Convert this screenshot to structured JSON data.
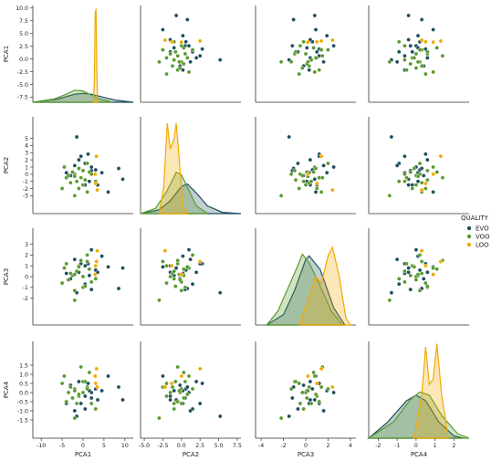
{
  "chart_data": {
    "type": "scatter",
    "variables": [
      "PCA1",
      "PCA2",
      "PCA3",
      "PCA4"
    ],
    "axis_ranges": {
      "PCA1": [
        -12,
        12
      ],
      "PCA2": [
        -5.5,
        8
      ],
      "PCA3": [
        -4.5,
        4.5
      ],
      "PCA4": [
        -2.5,
        2.8
      ]
    },
    "diag_density_max": {
      "PCA1": 0.6,
      "PCA2": 0.75,
      "PCA3": 0.28,
      "PCA4": 0.9
    },
    "y_ticks": {
      "PCA1": [
        "10.0",
        "7.5",
        "5.0",
        "2.5",
        "0.0",
        "-2.5",
        "-5.0",
        "-7.5"
      ],
      "PCA2": [
        "5",
        "4",
        "3",
        "2",
        "1",
        "0",
        "-1",
        "-2",
        "-3"
      ],
      "PCA3": [
        "3",
        "2",
        "1",
        "0",
        "-1",
        "-2"
      ],
      "PCA4": [
        "1.5",
        "1.0",
        "0.5",
        "0.0",
        "-0.5",
        "-1.0",
        "-1.5"
      ]
    },
    "y_tick_values": {
      "PCA1": [
        10,
        7.5,
        5,
        2.5,
        0,
        -2.5,
        -5,
        -7.5
      ],
      "PCA2": [
        5,
        4,
        3,
        2,
        1,
        0,
        -1,
        -2,
        -3
      ],
      "PCA3": [
        3,
        2,
        1,
        0,
        -1,
        -2
      ],
      "PCA4": [
        1.5,
        1,
        0.5,
        0,
        -0.5,
        -1,
        -1.5
      ]
    },
    "x_ticks": {
      "PCA1": [
        "-10",
        "-5",
        "0",
        "5",
        "10"
      ],
      "PCA2": [
        "-5.0",
        "-2.5",
        "0.0",
        "2.5",
        "5.0",
        "7.5"
      ],
      "PCA3": [
        "-4",
        "-2",
        "0",
        "2",
        "4"
      ],
      "PCA4": [
        "-2",
        "-1",
        "0",
        "1",
        "2"
      ]
    },
    "x_tick_values": {
      "PCA1": [
        -10,
        -5,
        0,
        5,
        10
      ],
      "PCA2": [
        -5,
        -2.5,
        0,
        2.5,
        5,
        7.5
      ],
      "PCA3": [
        -4,
        -2,
        0,
        2,
        4
      ],
      "PCA4": [
        -2,
        -1,
        0,
        1,
        2
      ]
    },
    "legend": {
      "title": "QUALITY",
      "placement": "right-center",
      "entries": [
        {
          "name": "EVO",
          "color": "#1f4e5f"
        },
        {
          "name": "VOO",
          "color": "#5a9a2f"
        },
        {
          "name": "LOO",
          "color": "#f2a900"
        }
      ]
    },
    "series": [
      {
        "name": "EVO",
        "color": "#1f4e5f",
        "points": [
          [
            -1.5,
            5.2,
            -1.5,
            -1.3
          ],
          [
            -4.0,
            0.2,
            0.3,
            -0.6
          ],
          [
            1.2,
            2.8,
            1.2,
            0.5
          ],
          [
            3.0,
            0.6,
            0.6,
            0.2
          ],
          [
            0.5,
            -1.5,
            1.0,
            -0.2
          ],
          [
            8.5,
            0.8,
            -1.1,
            0.3
          ],
          [
            9.5,
            -0.7,
            0.8,
            -0.4
          ],
          [
            4.5,
            0.2,
            1.9,
            0.1
          ],
          [
            6.0,
            -2.5,
            0.9,
            0.9
          ],
          [
            2.0,
            0.5,
            -1.2,
            -0.3
          ],
          [
            -1.0,
            2.0,
            0.4,
            0.6
          ],
          [
            0.5,
            1.5,
            -0.7,
            -0.9
          ],
          [
            2.0,
            1.0,
            2.5,
            0.0
          ],
          [
            -2.0,
            1.2,
            1.6,
            -1.0
          ],
          [
            1.5,
            -1.0,
            0.1,
            0.1
          ],
          [
            -0.5,
            2.5,
            1.2,
            -0.6
          ],
          [
            3.5,
            -1.5,
            0.4,
            -0.4
          ],
          [
            -3.0,
            -0.2,
            -0.2,
            0.4
          ]
        ]
      },
      {
        "name": "VOO",
        "color": "#5a9a2f",
        "points": [
          [
            -5.0,
            -2.0,
            -0.6,
            0.5
          ],
          [
            -4.0,
            -0.5,
            1.2,
            -0.5
          ],
          [
            -3.0,
            -1.2,
            0.3,
            0.3
          ],
          [
            -2.0,
            0.0,
            -1.3,
            0.2
          ],
          [
            -1.5,
            -1.0,
            0.5,
            -0.6
          ],
          [
            -1.0,
            -2.0,
            1.0,
            -0.2
          ],
          [
            0.0,
            0.5,
            -1.0,
            0.6
          ],
          [
            0.0,
            -1.5,
            0.0,
            0.0
          ],
          [
            1.0,
            -2.5,
            1.4,
            0.3
          ],
          [
            2.0,
            0.0,
            -0.5,
            -0.6
          ],
          [
            -4.5,
            1.0,
            0.8,
            0.9
          ],
          [
            -2.5,
            0.3,
            0.1,
            -0.3
          ],
          [
            1.5,
            0.3,
            0.7,
            1.1
          ],
          [
            -0.5,
            -0.5,
            1.5,
            1.4
          ],
          [
            3.0,
            -1.0,
            -0.2,
            -0.9
          ],
          [
            -2.0,
            -3.0,
            -2.2,
            -1.4
          ],
          [
            -1.0,
            0.8,
            0.9,
            -0.1
          ],
          [
            0.5,
            -0.8,
            -0.9,
            0.6
          ],
          [
            -3.5,
            -0.2,
            -0.3,
            0.0
          ],
          [
            1.0,
            1.5,
            2.0,
            0.2
          ],
          [
            -2.0,
            -0.3,
            0.2,
            0.1
          ]
        ]
      },
      {
        "name": "LOO",
        "color": "#f2a900",
        "points": [
          [
            3.0,
            -1.3,
            1.0,
            0.5
          ],
          [
            3.2,
            2.5,
            1.4,
            1.3
          ],
          [
            3.4,
            -2.2,
            2.4,
            0.3
          ],
          [
            2.9,
            0.0,
            0.2,
            0.9
          ]
        ]
      }
    ],
    "diagonal_kde": {
      "PCA1": {
        "EVO": [
          [
            -12,
            0.0
          ],
          [
            -6,
            0.02
          ],
          [
            -2,
            0.05
          ],
          [
            0,
            0.055
          ],
          [
            2,
            0.05
          ],
          [
            5,
            0.03
          ],
          [
            8,
            0.012
          ],
          [
            12,
            0.0
          ]
        ],
        "VOO": [
          [
            -12,
            0.0
          ],
          [
            -7,
            0.02
          ],
          [
            -4,
            0.05
          ],
          [
            -2,
            0.075
          ],
          [
            0,
            0.07
          ],
          [
            1.5,
            0.05
          ],
          [
            4,
            0.02
          ],
          [
            7,
            0.0
          ]
        ],
        "LOO": [
          [
            2.4,
            0.0
          ],
          [
            2.7,
            0.12
          ],
          [
            2.9,
            0.55
          ],
          [
            3.1,
            0.58
          ],
          [
            3.3,
            0.2
          ],
          [
            3.5,
            0.0
          ]
        ]
      },
      "PCA2": {
        "EVO": [
          [
            -5.5,
            0.0
          ],
          [
            -3,
            0.03
          ],
          [
            -1.5,
            0.1
          ],
          [
            0,
            0.21
          ],
          [
            0.8,
            0.23
          ],
          [
            2,
            0.16
          ],
          [
            3.5,
            0.06
          ],
          [
            5.5,
            0.01
          ],
          [
            8,
            0.0
          ]
        ],
        "VOO": [
          [
            -5.5,
            0.0
          ],
          [
            -3.5,
            0.04
          ],
          [
            -2,
            0.17
          ],
          [
            -0.7,
            0.32
          ],
          [
            0,
            0.3
          ],
          [
            1,
            0.18
          ],
          [
            2,
            0.06
          ],
          [
            3.5,
            0.0
          ]
        ],
        "LOO": [
          [
            -3,
            0.0
          ],
          [
            -2.4,
            0.2
          ],
          [
            -1.9,
            0.7
          ],
          [
            -1.5,
            0.5
          ],
          [
            -1.0,
            0.58
          ],
          [
            -0.7,
            0.7
          ],
          [
            -0.3,
            0.42
          ],
          [
            0.2,
            0.05
          ],
          [
            0.8,
            0.0
          ]
        ]
      },
      "PCA3": {
        "EVO": [
          [
            -3.5,
            0.0
          ],
          [
            -2,
            0.03
          ],
          [
            -1,
            0.1
          ],
          [
            0,
            0.19
          ],
          [
            0.3,
            0.2
          ],
          [
            1.3,
            0.16
          ],
          [
            2.5,
            0.05
          ],
          [
            3.5,
            0.0
          ]
        ],
        "VOO": [
          [
            -3.5,
            0.0
          ],
          [
            -2.5,
            0.04
          ],
          [
            -1,
            0.15
          ],
          [
            -0.3,
            0.205
          ],
          [
            0.3,
            0.18
          ],
          [
            1.2,
            0.12
          ],
          [
            2.3,
            0.04
          ],
          [
            3.3,
            0.0
          ]
        ],
        "LOO": [
          [
            -0.6,
            0.0
          ],
          [
            0.2,
            0.07
          ],
          [
            0.9,
            0.14
          ],
          [
            1.4,
            0.12
          ],
          [
            2.0,
            0.2
          ],
          [
            2.4,
            0.225
          ],
          [
            3.0,
            0.14
          ],
          [
            3.6,
            0.02
          ],
          [
            4,
            0.0
          ]
        ]
      },
      "PCA4": {
        "EVO": [
          [
            -2.5,
            0.0
          ],
          [
            -1.5,
            0.15
          ],
          [
            -0.5,
            0.35
          ],
          [
            0,
            0.4
          ],
          [
            0.5,
            0.35
          ],
          [
            1.2,
            0.15
          ],
          [
            2,
            0.02
          ],
          [
            2.5,
            0.0
          ]
        ],
        "VOO": [
          [
            -2.5,
            0.0
          ],
          [
            -1.2,
            0.15
          ],
          [
            -0.3,
            0.36
          ],
          [
            0.2,
            0.43
          ],
          [
            0.7,
            0.4
          ],
          [
            1.4,
            0.2
          ],
          [
            2.2,
            0.04
          ],
          [
            2.8,
            0.0
          ]
        ],
        "LOO": [
          [
            -0.1,
            0.0
          ],
          [
            0.3,
            0.4
          ],
          [
            0.5,
            0.85
          ],
          [
            0.7,
            0.5
          ],
          [
            0.9,
            0.55
          ],
          [
            1.1,
            0.88
          ],
          [
            1.35,
            0.4
          ],
          [
            1.7,
            0.0
          ]
        ]
      }
    }
  }
}
